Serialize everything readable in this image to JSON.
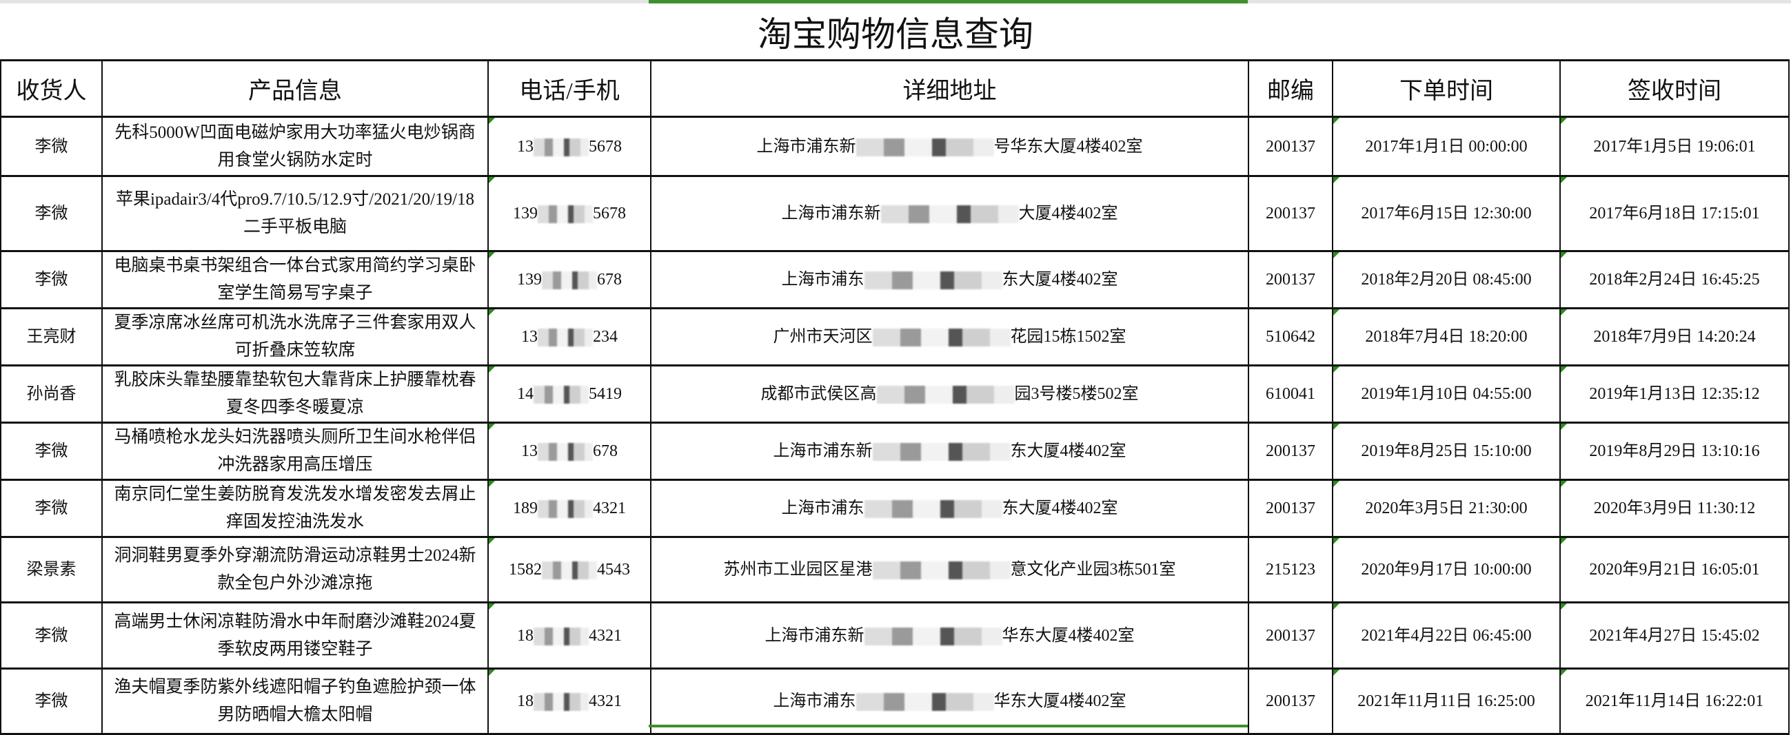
{
  "title": "淘宝购物信息查询",
  "colors": {
    "accent": "#3f8f2a",
    "border": "#111111"
  },
  "headers": [
    "收货人",
    "产品信息",
    "电话/手机",
    "详细地址",
    "邮编",
    "下单时间",
    "签收时间"
  ],
  "rows": [
    {
      "name": "李微",
      "product": "先科5000W凹面电磁炉家用大功率猛火电炒锅商用食堂火锅防水定时",
      "phone_prefix": "13",
      "phone_suffix": "5678",
      "addr_prefix": "上海市浦东新",
      "addr_suffix": "号华东大厦4楼402室",
      "zip": "200137",
      "order_time": "2017年1月1日 00:00:00",
      "sign_time": "2017年1月5日 19:06:01"
    },
    {
      "name": "李微",
      "product": "苹果ipadair3/4代pro9.7/10.5/12.9寸/2021/20/19/18二手平板电脑",
      "phone_prefix": "139",
      "phone_suffix": "5678",
      "addr_prefix": "上海市浦东新",
      "addr_suffix": "大厦4楼402室",
      "zip": "200137",
      "order_time": "2017年6月15日 12:30:00",
      "sign_time": "2017年6月18日 17:15:01"
    },
    {
      "name": "李微",
      "product": "电脑桌书桌书架组合一体台式家用简约学习桌卧室学生简易写字桌子",
      "phone_prefix": "139",
      "phone_suffix": "678",
      "addr_prefix": "上海市浦东",
      "addr_suffix": "东大厦4楼402室",
      "zip": "200137",
      "order_time": "2018年2月20日 08:45:00",
      "sign_time": "2018年2月24日 16:45:25"
    },
    {
      "name": "王亮财",
      "product": "夏季凉席冰丝席可机洗水洗席子三件套家用双人可折叠床笠软席",
      "phone_prefix": "13",
      "phone_suffix": "234",
      "addr_prefix": "广州市天河区",
      "addr_suffix": "花园15栋1502室",
      "zip": "510642",
      "order_time": "2018年7月4日 18:20:00",
      "sign_time": "2018年7月9日 14:20:24"
    },
    {
      "name": "孙尚香",
      "product": "乳胶床头靠垫腰靠垫软包大靠背床上护腰靠枕春夏冬四季冬暖夏凉",
      "phone_prefix": "14",
      "phone_suffix": "5419",
      "addr_prefix": "成都市武侯区高",
      "addr_suffix": "园3号楼5楼502室",
      "zip": "610041",
      "order_time": "2019年1月10日 04:55:00",
      "sign_time": "2019年1月13日 12:35:12"
    },
    {
      "name": "李微",
      "product": "马桶喷枪水龙头妇洗器喷头厕所卫生间水枪伴侣冲洗器家用高压增压",
      "phone_prefix": "13",
      "phone_suffix": "678",
      "addr_prefix": "上海市浦东新",
      "addr_suffix": "东大厦4楼402室",
      "zip": "200137",
      "order_time": "2019年8月25日 15:10:00",
      "sign_time": "2019年8月29日 13:10:16"
    },
    {
      "name": "李微",
      "product": "南京同仁堂生姜防脱育发洗发水增发密发去屑止痒固发控油洗发水",
      "phone_prefix": "189",
      "phone_suffix": "4321",
      "addr_prefix": "上海市浦东",
      "addr_suffix": "东大厦4楼402室",
      "zip": "200137",
      "order_time": "2020年3月5日 21:30:00",
      "sign_time": "2020年3月9日 11:30:12"
    },
    {
      "name": "梁景素",
      "product": "洞洞鞋男夏季外穿潮流防滑运动凉鞋男士2024新款全包户外沙滩凉拖",
      "phone_prefix": "1582",
      "phone_suffix": "4543",
      "addr_prefix": "苏州市工业园区星港",
      "addr_suffix": "意文化产业园3栋501室",
      "zip": "215123",
      "order_time": "2020年9月17日 10:00:00",
      "sign_time": "2020年9月21日 16:05:01"
    },
    {
      "name": "李微",
      "product": "高端男士休闲凉鞋防滑水中年耐磨沙滩鞋2024夏季软皮两用镂空鞋子",
      "phone_prefix": "18",
      "phone_suffix": "4321",
      "addr_prefix": "上海市浦东新",
      "addr_suffix": "华东大厦4楼402室",
      "zip": "200137",
      "order_time": "2021年4月22日 06:45:00",
      "sign_time": "2021年4月27日 15:45:02"
    },
    {
      "name": "李微",
      "product": "渔夫帽夏季防紫外线遮阳帽子钓鱼遮脸护颈一体男防晒帽大檐太阳帽",
      "phone_prefix": "18",
      "phone_suffix": "4321",
      "addr_prefix": "上海市浦东",
      "addr_suffix": "华东大厦4楼402室",
      "zip": "200137",
      "order_time": "2021年11月11日 16:25:00",
      "sign_time": "2021年11月14日 16:22:01"
    }
  ]
}
